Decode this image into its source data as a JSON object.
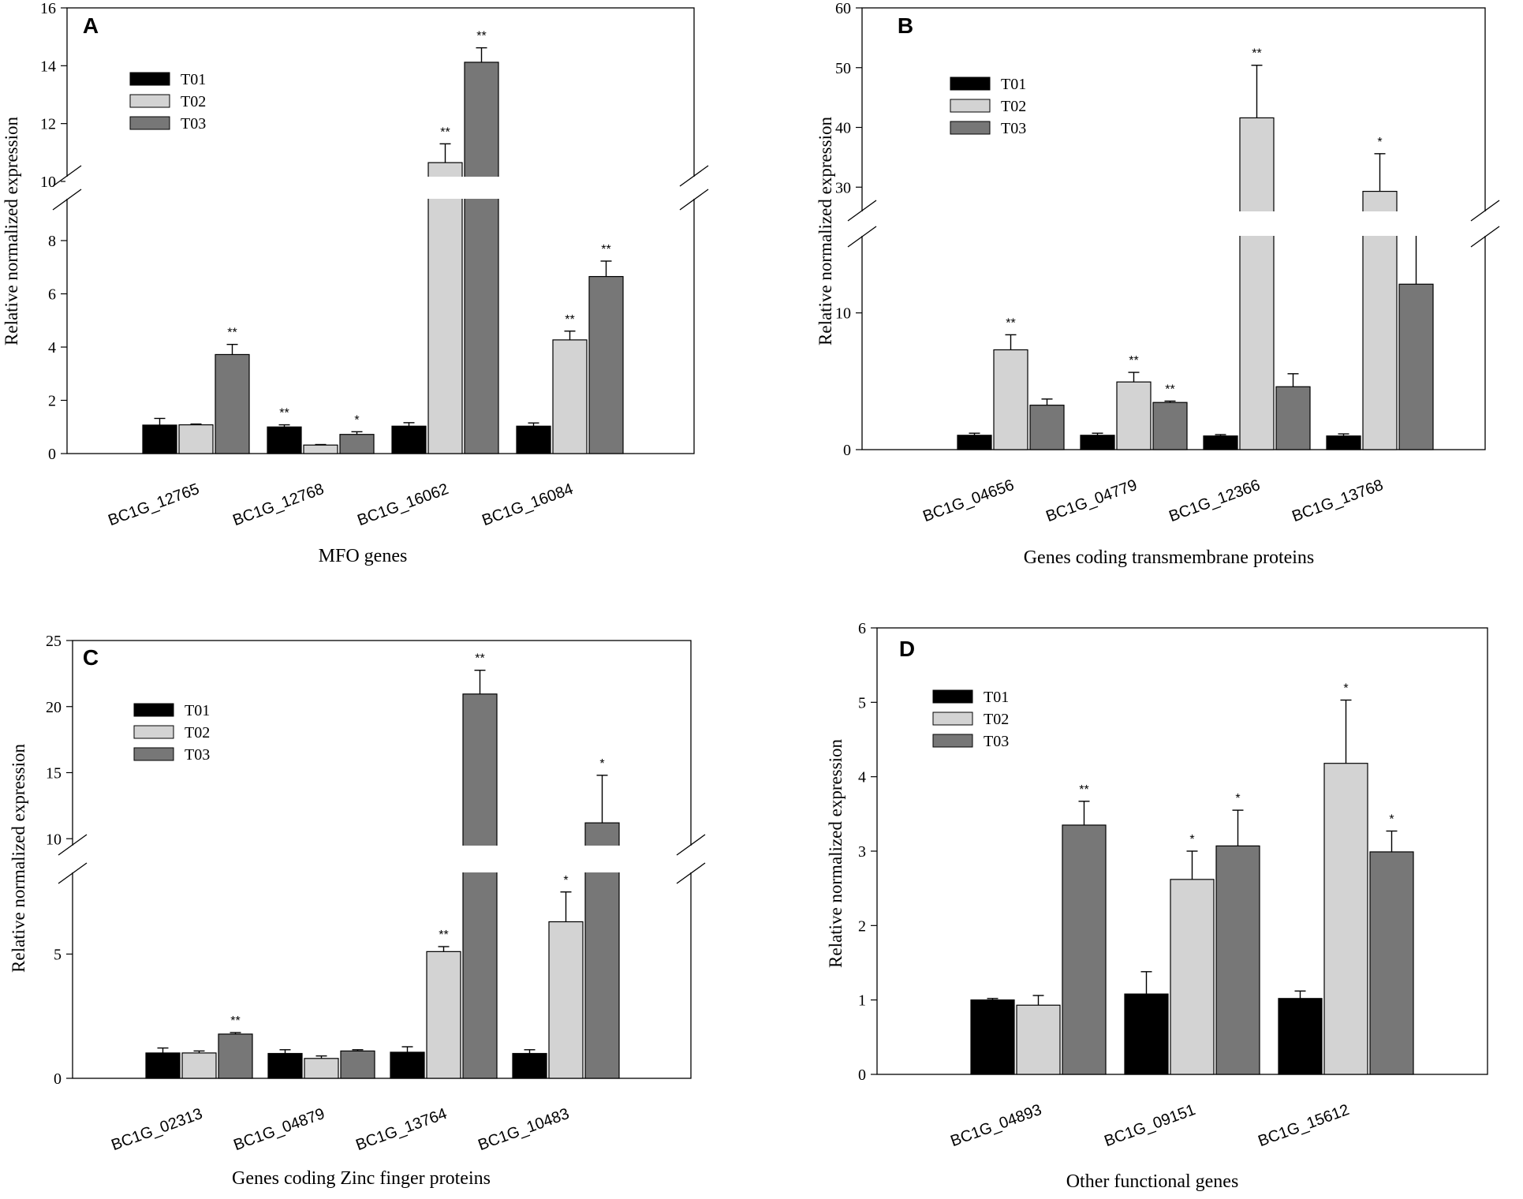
{
  "figure": {
    "series_names": [
      "T01",
      "T02",
      "T03"
    ],
    "series_colors": [
      "#000000",
      "#d3d3d3",
      "#777777"
    ]
  },
  "chart_data": [
    {
      "type": "bar",
      "panel": "A",
      "xlabel": "MFO genes",
      "ylabel": "Relative normalized expression",
      "categories": [
        "BC1G_12765",
        "BC1G_12768",
        "BC1G_16062",
        "BC1G_16084"
      ],
      "series": [
        {
          "name": "T01",
          "values": [
            1.07,
            1.0,
            1.03,
            1.03
          ],
          "errors": [
            0.25,
            0.08,
            0.13,
            0.12
          ],
          "sig": [
            "",
            "**",
            "",
            ""
          ]
        },
        {
          "name": "T02",
          "values": [
            1.08,
            0.32,
            10.65,
            4.27
          ],
          "errors": [
            0.03,
            0.02,
            0.65,
            0.33
          ],
          "sig": [
            "",
            "",
            "**",
            "**"
          ]
        },
        {
          "name": "T03",
          "values": [
            3.72,
            0.72,
            14.12,
            6.65
          ],
          "errors": [
            0.38,
            0.1,
            0.5,
            0.58
          ],
          "sig": [
            "**",
            "*",
            "**",
            "**"
          ]
        }
      ],
      "axis_break": {
        "lower": [
          0,
          8
        ],
        "upper": [
          10,
          16
        ]
      },
      "y_ticks_lower": [
        "0",
        "2",
        "4",
        "6",
        "8"
      ],
      "y_ticks_upper": [
        "10",
        "12",
        "14",
        "16"
      ],
      "legend": "top-left"
    },
    {
      "type": "bar",
      "panel": "B",
      "xlabel": "Genes coding transmembrane proteins",
      "ylabel": "Relative normalized expression",
      "categories": [
        "BC1G_04656",
        "BC1G_04779",
        "BC1G_12366",
        "BC1G_13768"
      ],
      "series": [
        {
          "name": "T01",
          "values": [
            1.05,
            1.05,
            1.0,
            1.0
          ],
          "errors": [
            0.15,
            0.15,
            0.1,
            0.15
          ],
          "sig": [
            "",
            "",
            "",
            ""
          ]
        },
        {
          "name": "T02",
          "values": [
            7.3,
            4.95,
            41.6,
            29.3
          ],
          "errors": [
            1.1,
            0.7,
            8.8,
            6.3
          ],
          "sig": [
            "**",
            "**",
            "**",
            "*"
          ]
        },
        {
          "name": "T03",
          "values": [
            3.25,
            3.45,
            4.6,
            12.1
          ],
          "errors": [
            0.45,
            0.1,
            0.95,
            3.4
          ],
          "sig": [
            "",
            "**",
            "",
            ""
          ]
        }
      ],
      "axis_break": {
        "lower": [
          0,
          15
        ],
        "upper": [
          27,
          60
        ]
      },
      "y_ticks_lower": [
        "0",
        "10"
      ],
      "y_ticks_upper": [
        "30",
        "40",
        "50",
        "60"
      ],
      "legend": "top-left"
    },
    {
      "type": "bar",
      "panel": "C",
      "xlabel": "Genes coding Zinc finger proteins",
      "ylabel": "Relative normalized expression",
      "categories": [
        "BC1G_02313",
        "BC1G_04879",
        "BC1G_13764",
        "BC1G_10483"
      ],
      "series": [
        {
          "name": "T01",
          "values": [
            1.02,
            1.0,
            1.05,
            1.0
          ],
          "errors": [
            0.2,
            0.15,
            0.22,
            0.15
          ],
          "sig": [
            "",
            "",
            "",
            ""
          ]
        },
        {
          "name": "T02",
          "values": [
            1.02,
            0.8,
            5.1,
            6.3
          ],
          "errors": [
            0.08,
            0.1,
            0.2,
            1.2
          ],
          "sig": [
            "",
            "",
            "**",
            "*"
          ]
        },
        {
          "name": "T03",
          "values": [
            1.78,
            1.1,
            20.95,
            11.2
          ],
          "errors": [
            0.06,
            0.05,
            1.8,
            3.6
          ],
          "sig": [
            "**",
            "",
            "**",
            "*"
          ]
        }
      ],
      "axis_break": {
        "lower": [
          0,
          8
        ],
        "upper": [
          9,
          25
        ]
      },
      "y_ticks_lower": [
        "0",
        "5"
      ],
      "y_ticks_upper": [
        "10",
        "15",
        "20",
        "25"
      ],
      "legend": "top-left"
    },
    {
      "type": "bar",
      "panel": "D",
      "xlabel": "Other functional genes",
      "ylabel": "Relative normalized expression",
      "categories": [
        "BC1G_04893",
        "BC1G_09151",
        "BC1G_15612"
      ],
      "series": [
        {
          "name": "T01",
          "values": [
            1.0,
            1.08,
            1.02
          ],
          "errors": [
            0.02,
            0.3,
            0.1
          ],
          "sig": [
            "",
            "",
            ""
          ]
        },
        {
          "name": "T02",
          "values": [
            0.93,
            2.62,
            4.18
          ],
          "errors": [
            0.13,
            0.38,
            0.85
          ],
          "sig": [
            "",
            "*",
            "*"
          ]
        },
        {
          "name": "T03",
          "values": [
            3.35,
            3.07,
            2.99
          ],
          "errors": [
            0.32,
            0.48,
            0.28
          ],
          "sig": [
            "**",
            "*",
            "*"
          ]
        }
      ],
      "axis_break": null,
      "y_ticks": [
        "0",
        "1",
        "2",
        "3",
        "4",
        "5",
        "6"
      ],
      "ylim": [
        0,
        6
      ],
      "legend": "top-left"
    }
  ]
}
